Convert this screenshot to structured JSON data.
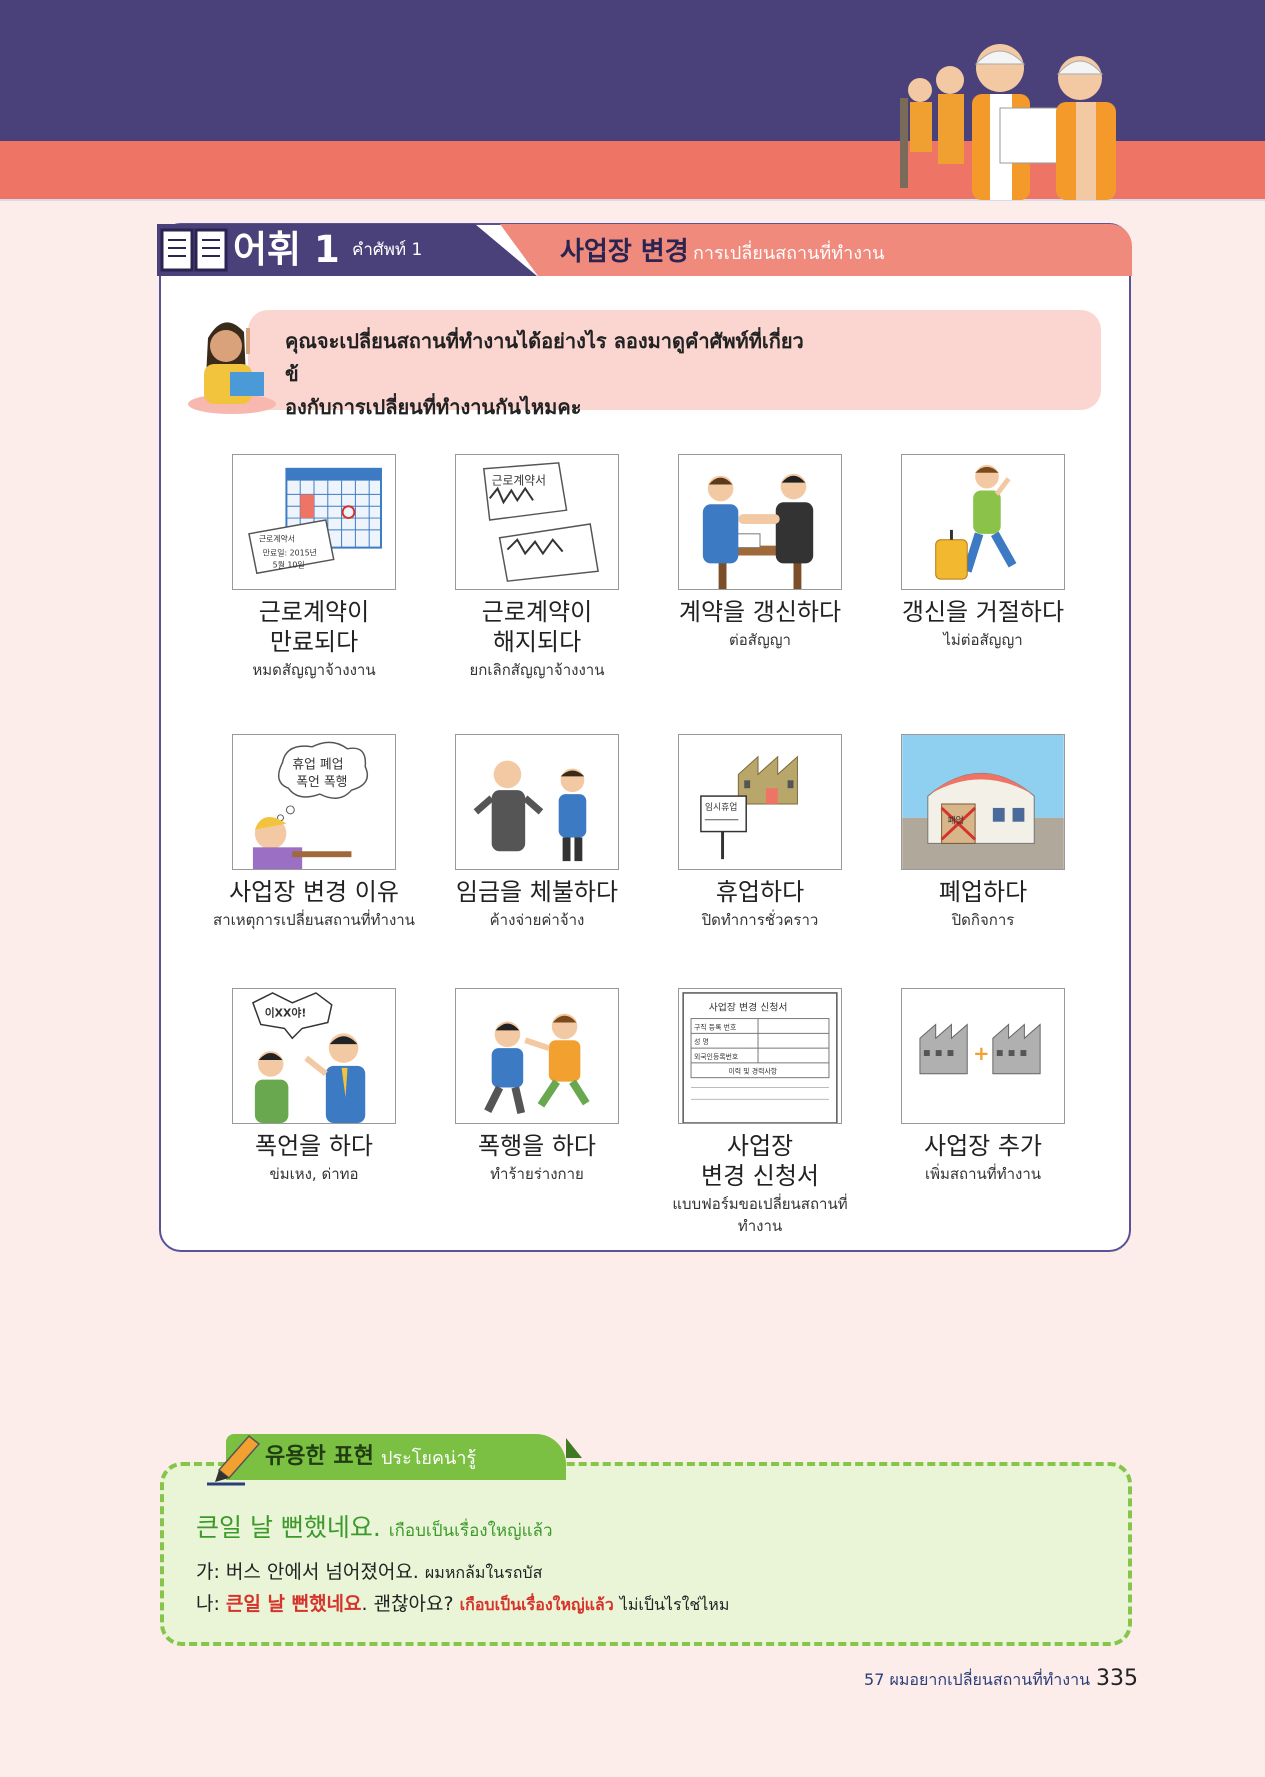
{
  "header": {
    "title_ko": "어휘 1",
    "title_th": "คำศัพท์ 1",
    "topic_ko": "사업장 변경",
    "topic_th": "การเปลี่ยนสถานที่ทำงาน"
  },
  "speech": {
    "line1": "คุณจะเปลี่ยนสถานที่ทำงานได้อย่างไร ลองมาดูคำศัพท์ที่เกี่ยวข้",
    "line2": "องกับการเปลี่ยนที่ทำงานกันไหมคะ"
  },
  "vocab": [
    {
      "ko": "근로계약이\n만료되다",
      "th": "หมดสัญญาจ้างงาน"
    },
    {
      "ko": "근로계약이\n해지되다",
      "th": "ยกเลิกสัญญาจ้างงาน"
    },
    {
      "ko": "계약을 갱신하다",
      "th": "ต่อสัญญา"
    },
    {
      "ko": "갱신을 거절하다",
      "th": "ไม่ต่อสัญญา"
    },
    {
      "ko": "사업장 변경 이유",
      "th": "สาเหตุการเปลี่ยนสถานที่ทำงาน"
    },
    {
      "ko": "임금을 체불하다",
      "th": "ค้างจ่ายค่าจ้าง"
    },
    {
      "ko": "휴업하다",
      "th": "ปิดทำการชั่วคราว"
    },
    {
      "ko": "폐업하다",
      "th": "ปิดกิจการ"
    },
    {
      "ko": "폭언을 하다",
      "th": "ข่มเหง, ด่าทอ"
    },
    {
      "ko": "폭행을 하다",
      "th": "ทำร้ายร่างกาย"
    },
    {
      "ko": "사업장\n변경 신청서",
      "th": "แบบฟอร์มขอเปลี่ยนสถานที่ทำงาน"
    },
    {
      "ko": "사업장 추가",
      "th": "เพิ่มสถานที่ทำงาน"
    }
  ],
  "image_text": {
    "calendar_note": "근로계약서\n만료일: 2015년\n5월 10일",
    "contract": "근로계약서",
    "bubble": "휴업 폐업\n폭언 폭행",
    "sign": "임시휴업",
    "closed_sign": "폐업",
    "shout": "이XX야!",
    "form_title": "사업장 변경 신청서",
    "form_rows": [
      "구직 등록 번호",
      "성 명",
      "외국인등록번호",
      "이력 및 경력사항"
    ]
  },
  "expression": {
    "title_ko": "유용한 표현",
    "title_th": "ประโยคน่ารู้",
    "main_ko": "큰일 날 뻔했네요.",
    "main_th": "เกือบเป็นเรื่องใหญ่แล้ว",
    "line1_prefix": "가: ",
    "line1_ko": "버스 안에서 넘어졌어요.",
    "line1_th": "ผมหกล้มในรถบัส",
    "line2_prefix": "나: ",
    "line2_ko_red": "큰일 날 뻔했네요",
    "line2_ko_rest": ". 괜찮아요?",
    "line2_th_red": "เกือบเป็นเรื่องใหญ่แล้ว",
    "line2_th_rest": "ไม่เป็นไรใช่ไหม"
  },
  "footer": {
    "chapter": "57 ผมอยากเปลี่ยนสถานที่ทำงาน",
    "page": "335"
  },
  "colors": {
    "header_purple": "#4a417a",
    "header_salmon": "#ee7566",
    "accent_green": "#7cc043",
    "accent_red": "#d6332a",
    "background": "#fcecea"
  }
}
